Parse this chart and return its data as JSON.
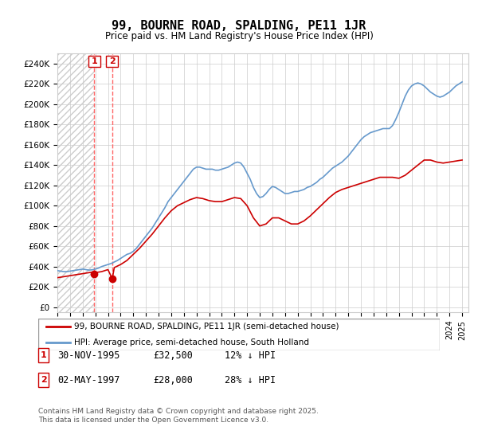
{
  "title": "99, BOURNE ROAD, SPALDING, PE11 1JR",
  "subtitle": "Price paid vs. HM Land Registry's House Price Index (HPI)",
  "ylabel_format": "£{0}K",
  "yticks": [
    0,
    20000,
    40000,
    60000,
    80000,
    100000,
    120000,
    140000,
    160000,
    180000,
    200000,
    220000,
    240000
  ],
  "ylim": [
    -5000,
    250000
  ],
  "xlim_start": 1993.0,
  "xlim_end": 2025.5,
  "transaction1_date": 1995.92,
  "transaction1_price": 32500,
  "transaction1_label": "1",
  "transaction1_text": "30-NOV-1995",
  "transaction1_amount": "£32,500",
  "transaction1_hpi": "12% ↓ HPI",
  "transaction2_date": 1997.34,
  "transaction2_price": 28000,
  "transaction2_label": "2",
  "transaction2_text": "02-MAY-1997",
  "transaction2_amount": "£28,000",
  "transaction2_hpi": "28% ↓ HPI",
  "house_line_color": "#cc0000",
  "hpi_line_color": "#6699cc",
  "legend_house_label": "99, BOURNE ROAD, SPALDING, PE11 1JR (semi-detached house)",
  "legend_hpi_label": "HPI: Average price, semi-detached house, South Holland",
  "footer": "Contains HM Land Registry data © Crown copyright and database right 2025.\nThis data is licensed under the Open Government Licence v3.0.",
  "hpi_data": {
    "years": [
      1993.0,
      1993.25,
      1993.5,
      1993.75,
      1994.0,
      1994.25,
      1994.5,
      1994.75,
      1995.0,
      1995.25,
      1995.5,
      1995.75,
      1996.0,
      1996.25,
      1996.5,
      1996.75,
      1997.0,
      1997.25,
      1997.5,
      1997.75,
      1998.0,
      1998.25,
      1998.5,
      1998.75,
      1999.0,
      1999.25,
      1999.5,
      1999.75,
      2000.0,
      2000.25,
      2000.5,
      2000.75,
      2001.0,
      2001.25,
      2001.5,
      2001.75,
      2002.0,
      2002.25,
      2002.5,
      2002.75,
      2003.0,
      2003.25,
      2003.5,
      2003.75,
      2004.0,
      2004.25,
      2004.5,
      2004.75,
      2005.0,
      2005.25,
      2005.5,
      2005.75,
      2006.0,
      2006.25,
      2006.5,
      2006.75,
      2007.0,
      2007.25,
      2007.5,
      2007.75,
      2008.0,
      2008.25,
      2008.5,
      2008.75,
      2009.0,
      2009.25,
      2009.5,
      2009.75,
      2010.0,
      2010.25,
      2010.5,
      2010.75,
      2011.0,
      2011.25,
      2011.5,
      2011.75,
      2012.0,
      2012.25,
      2012.5,
      2012.75,
      2013.0,
      2013.25,
      2013.5,
      2013.75,
      2014.0,
      2014.25,
      2014.5,
      2014.75,
      2015.0,
      2015.25,
      2015.5,
      2015.75,
      2016.0,
      2016.25,
      2016.5,
      2016.75,
      2017.0,
      2017.25,
      2017.5,
      2017.75,
      2018.0,
      2018.25,
      2018.5,
      2018.75,
      2019.0,
      2019.25,
      2019.5,
      2019.75,
      2020.0,
      2020.25,
      2020.5,
      2020.75,
      2021.0,
      2021.25,
      2021.5,
      2021.75,
      2022.0,
      2022.25,
      2022.5,
      2022.75,
      2023.0,
      2023.25,
      2023.5,
      2023.75,
      2024.0,
      2024.25,
      2024.5,
      2024.75,
      2025.0
    ],
    "values": [
      36000,
      35500,
      35000,
      35000,
      35500,
      36000,
      36500,
      37000,
      37500,
      37000,
      36500,
      36800,
      37500,
      38500,
      40000,
      41000,
      42000,
      43000,
      44500,
      46000,
      48000,
      50000,
      52000,
      53000,
      55000,
      58000,
      62000,
      66000,
      70000,
      74000,
      78000,
      83000,
      88000,
      93000,
      98000,
      104000,
      108000,
      112000,
      116000,
      120000,
      124000,
      128000,
      132000,
      136000,
      138000,
      138000,
      137000,
      136000,
      136000,
      136000,
      135000,
      135000,
      136000,
      137000,
      138000,
      140000,
      142000,
      143000,
      142000,
      138000,
      132000,
      126000,
      118000,
      112000,
      108000,
      109000,
      112000,
      116000,
      119000,
      118000,
      116000,
      114000,
      112000,
      112000,
      113000,
      114000,
      114000,
      115000,
      116000,
      118000,
      119000,
      121000,
      123000,
      126000,
      128000,
      131000,
      134000,
      137000,
      139000,
      141000,
      143000,
      146000,
      149000,
      153000,
      157000,
      161000,
      165000,
      168000,
      170000,
      172000,
      173000,
      174000,
      175000,
      176000,
      176000,
      176000,
      179000,
      185000,
      192000,
      200000,
      208000,
      214000,
      218000,
      220000,
      221000,
      220000,
      218000,
      215000,
      212000,
      210000,
      208000,
      207000,
      208000,
      210000,
      212000,
      215000,
      218000,
      220000,
      222000
    ]
  },
  "house_data": {
    "years": [
      1993.0,
      1993.5,
      1994.0,
      1994.5,
      1995.0,
      1995.5,
      1995.75,
      1995.92,
      1996.0,
      1996.5,
      1997.0,
      1997.34,
      1997.5,
      1998.0,
      1998.5,
      1999.0,
      1999.5,
      2000.0,
      2000.5,
      2001.0,
      2001.5,
      2002.0,
      2002.5,
      2003.0,
      2003.5,
      2004.0,
      2004.5,
      2005.0,
      2005.5,
      2006.0,
      2006.5,
      2007.0,
      2007.5,
      2008.0,
      2008.5,
      2009.0,
      2009.5,
      2010.0,
      2010.5,
      2011.0,
      2011.5,
      2012.0,
      2012.5,
      2013.0,
      2013.5,
      2014.0,
      2014.5,
      2015.0,
      2015.5,
      2016.0,
      2016.5,
      2017.0,
      2017.5,
      2018.0,
      2018.5,
      2019.0,
      2019.5,
      2020.0,
      2020.5,
      2021.0,
      2021.5,
      2022.0,
      2022.5,
      2023.0,
      2023.5,
      2024.0,
      2024.5,
      2025.0
    ],
    "values": [
      29000,
      30000,
      31000,
      32000,
      33000,
      34000,
      34500,
      32500,
      34000,
      35000,
      37000,
      28000,
      39000,
      42000,
      46000,
      52000,
      58000,
      65000,
      72000,
      80000,
      88000,
      95000,
      100000,
      103000,
      106000,
      108000,
      107000,
      105000,
      104000,
      104000,
      106000,
      108000,
      107000,
      100000,
      88000,
      80000,
      82000,
      88000,
      88000,
      85000,
      82000,
      82000,
      85000,
      90000,
      96000,
      102000,
      108000,
      113000,
      116000,
      118000,
      120000,
      122000,
      124000,
      126000,
      128000,
      128000,
      128000,
      127000,
      130000,
      135000,
      140000,
      145000,
      145000,
      143000,
      142000,
      143000,
      144000,
      145000
    ]
  }
}
